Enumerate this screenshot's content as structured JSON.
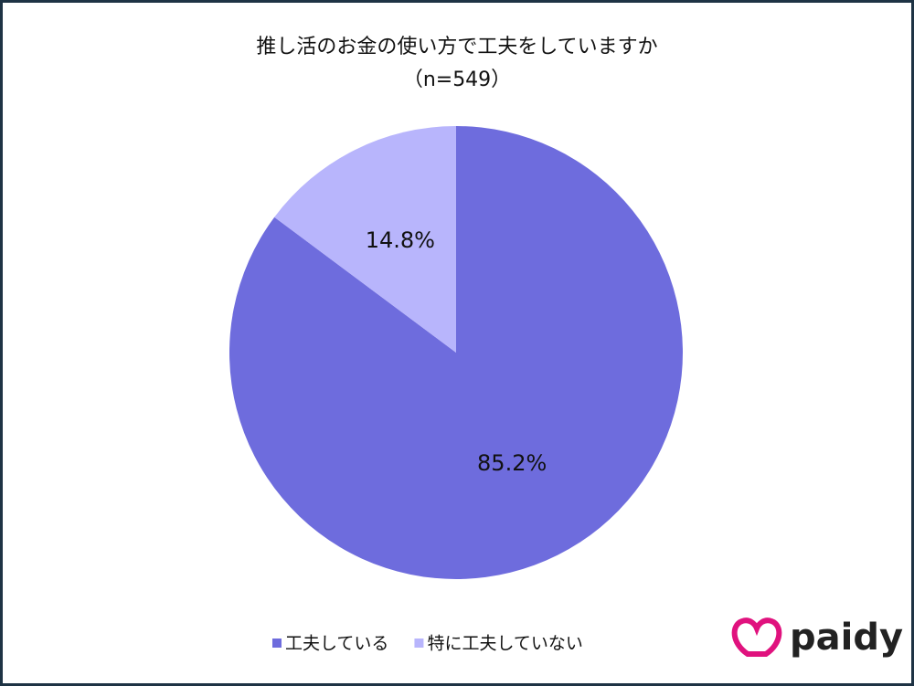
{
  "chart_data": {
    "type": "pie",
    "title": "推し活のお金の使い方で工夫をしていますか",
    "subtitle": "（n=549）",
    "categories": [
      "工夫している",
      "特に工夫していない"
    ],
    "values": [
      85.2,
      14.8
    ],
    "value_labels": [
      "85.2%",
      "14.8%"
    ],
    "colors": [
      "#6e6cdd",
      "#b8b5fc"
    ],
    "legend": "bottom"
  },
  "brand": "paidy"
}
